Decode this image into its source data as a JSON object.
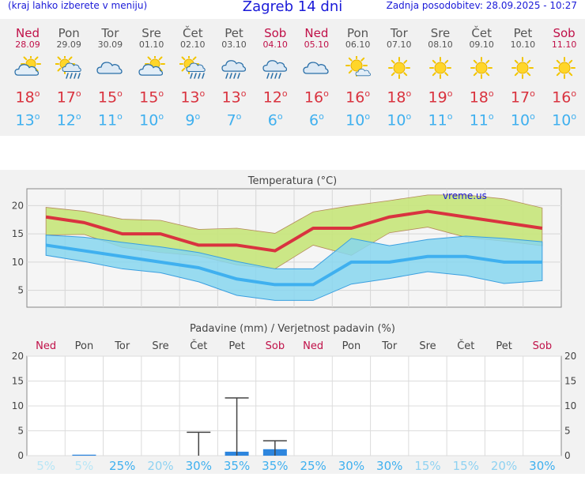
{
  "header": {
    "menu_hint": "(kraj lahko izberete v meniju)",
    "title": "Zagreb 14 dni",
    "updated": "Zadnja posodobitev: 28.09.2025 - 10:27"
  },
  "days": [
    {
      "name": "Ned",
      "date": "28.09",
      "weekend": true,
      "icon": "partly-cloudy-icon",
      "max": "18",
      "min": "13"
    },
    {
      "name": "Pon",
      "date": "29.09",
      "weekend": false,
      "icon": "sun-rain-icon",
      "max": "17",
      "min": "12"
    },
    {
      "name": "Tor",
      "date": "30.09",
      "weekend": false,
      "icon": "cloudy-icon",
      "max": "15",
      "min": "11"
    },
    {
      "name": "Sre",
      "date": "01.10",
      "weekend": false,
      "icon": "partly-cloudy-icon",
      "max": "15",
      "min": "10"
    },
    {
      "name": "Čet",
      "date": "02.10",
      "weekend": false,
      "icon": "sun-rain-icon",
      "max": "13",
      "min": "9"
    },
    {
      "name": "Pet",
      "date": "03.10",
      "weekend": false,
      "icon": "rain-cloud-icon",
      "max": "13",
      "min": "7"
    },
    {
      "name": "Sob",
      "date": "04.10",
      "weekend": true,
      "icon": "rain-cloud-icon",
      "max": "12",
      "min": "6"
    },
    {
      "name": "Ned",
      "date": "05.10",
      "weekend": true,
      "icon": "cloudy-icon",
      "max": "16",
      "min": "6"
    },
    {
      "name": "Pon",
      "date": "06.10",
      "weekend": false,
      "icon": "sun-cloud-icon",
      "max": "16",
      "min": "10"
    },
    {
      "name": "Tor",
      "date": "07.10",
      "weekend": false,
      "icon": "sun-icon",
      "max": "18",
      "min": "10"
    },
    {
      "name": "Sre",
      "date": "08.10",
      "weekend": false,
      "icon": "sun-icon",
      "max": "19",
      "min": "11"
    },
    {
      "name": "Čet",
      "date": "09.10",
      "weekend": false,
      "icon": "sun-icon",
      "max": "18",
      "min": "11"
    },
    {
      "name": "Pet",
      "date": "10.10",
      "weekend": false,
      "icon": "sun-icon",
      "max": "17",
      "min": "10"
    },
    {
      "name": "Sob",
      "date": "11.10",
      "weekend": true,
      "icon": "sun-icon",
      "max": "16",
      "min": "10"
    }
  ],
  "degree_symbol": "o",
  "colors": {
    "title_blue": "#1a1ad8",
    "weekend": "#c01048",
    "max_red": "#d9333f",
    "min_blue": "#3fb0ef",
    "max_band": "#c6e57a",
    "min_band": "#87d6ef",
    "precip_bar": "#2e86de"
  },
  "chart_data": [
    {
      "type": "line",
      "title": "Temperatura (°C)",
      "watermark": "vreme.us",
      "ylim": [
        2,
        23
      ],
      "yticks": [
        5,
        10,
        15,
        20
      ],
      "x": [
        "28.09",
        "29.09",
        "30.09",
        "01.10",
        "02.10",
        "03.10",
        "04.10",
        "05.10",
        "06.10",
        "07.10",
        "08.10",
        "09.10",
        "10.10",
        "11.10"
      ],
      "series": [
        {
          "values": [
            18,
            17,
            15,
            15,
            13,
            13,
            12,
            16,
            16,
            18,
            19,
            18,
            17,
            16
          ]
        },
        {
          "values": [
            13,
            12,
            11,
            10,
            9,
            7,
            6,
            6,
            10,
            10,
            11,
            11,
            10,
            10
          ]
        }
      ],
      "max_band": {
        "upper": [
          19.7,
          19.0,
          17.6,
          17.4,
          15.8,
          16.0,
          15.1,
          18.9,
          20.0,
          20.9,
          21.9,
          21.9,
          21.2,
          19.6
        ],
        "lower": [
          14.8,
          14.9,
          12.6,
          11.7,
          11.1,
          9.5,
          8.8,
          13.0,
          11.2,
          15.2,
          16.2,
          14.4,
          13.7,
          12.9
        ]
      },
      "min_band": {
        "upper": [
          14.8,
          14.4,
          13.5,
          12.7,
          11.7,
          10.1,
          8.8,
          8.8,
          14.2,
          12.9,
          14.0,
          14.6,
          14.2,
          13.6
        ],
        "lower": [
          11.2,
          10.1,
          8.8,
          8.1,
          6.5,
          4.1,
          3.2,
          3.2,
          6.1,
          7.1,
          8.3,
          7.6,
          6.2,
          6.7
        ]
      }
    },
    {
      "type": "bar",
      "title": "Padavine (mm) / Verjetnost padavin (%)",
      "ylim": [
        0,
        20
      ],
      "yticks": [
        0,
        5,
        10,
        15,
        20
      ],
      "categories": [
        "Ned",
        "Pon",
        "Tor",
        "Sre",
        "Čet",
        "Pet",
        "Sob",
        "Ned",
        "Pon",
        "Tor",
        "Sre",
        "Čet",
        "Pet",
        "Sob"
      ],
      "weekend": [
        true,
        false,
        false,
        false,
        false,
        false,
        true,
        true,
        false,
        false,
        false,
        false,
        false,
        true
      ],
      "values": [
        0,
        0.2,
        0,
        0,
        0,
        0.8,
        1.3,
        0,
        0,
        0,
        0,
        0,
        0,
        0
      ],
      "error_high": [
        null,
        null,
        null,
        null,
        4.7,
        11.6,
        3.0,
        null,
        null,
        null,
        null,
        null,
        null,
        null
      ],
      "probability": [
        "5%",
        "5%",
        "25%",
        "20%",
        "30%",
        "35%",
        "35%",
        "25%",
        "30%",
        "30%",
        "15%",
        "15%",
        "20%",
        "30%"
      ],
      "probability_colors": [
        "#b8e6f6",
        "#b8e6f6",
        "#3fb0ef",
        "#8fd2f2",
        "#3fb0ef",
        "#3fb0ef",
        "#3fb0ef",
        "#3fb0ef",
        "#3fb0ef",
        "#3fb0ef",
        "#8fd2f2",
        "#8fd2f2",
        "#8fd2f2",
        "#3fb0ef"
      ]
    }
  ]
}
